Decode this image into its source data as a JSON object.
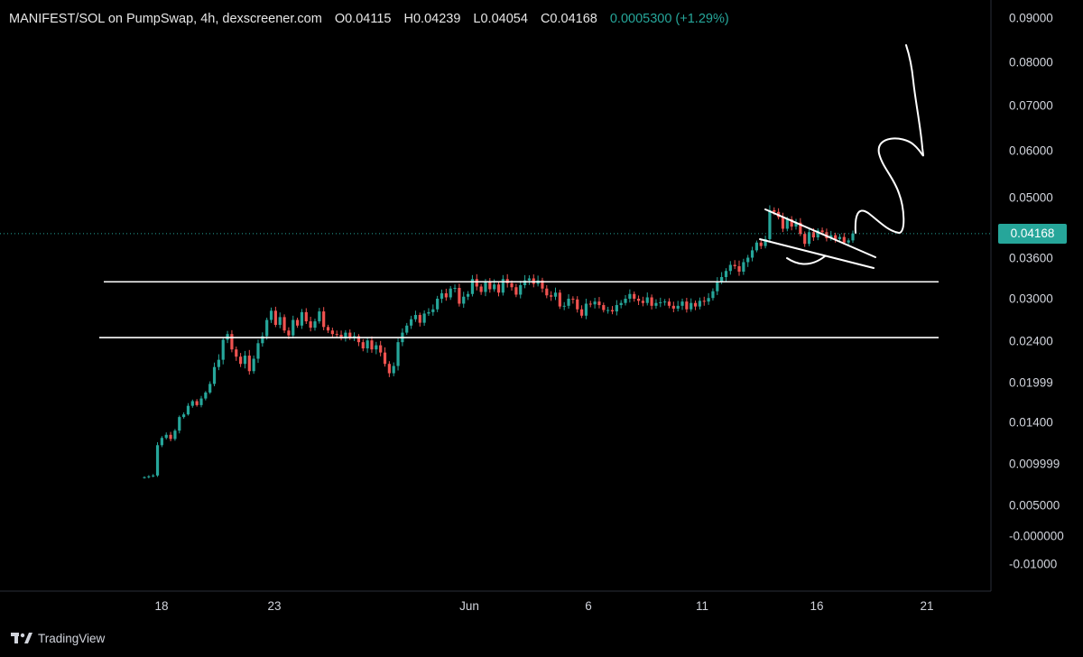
{
  "header": {
    "symbol": "MANIFEST/SOL on PumpSwap, 4h, dexscreener.com",
    "open": "O0.04115",
    "high": "H0.04239",
    "low": "L0.04054",
    "close": "C0.04168",
    "change": "0.0005300 (+1.29%)"
  },
  "last_price_label": "0.04168",
  "branding": {
    "name": "TradingView",
    "logo_icon": "tradingview-logo-icon"
  },
  "colors": {
    "up": "#26a69a",
    "down": "#ef5350",
    "background": "#000000",
    "annotation": "#ffffff"
  },
  "chart_data": {
    "type": "candlestick",
    "title": "MANIFEST/SOL on PumpSwap, 4h, dexscreener.com",
    "y_tick_labels": [
      "0.09000",
      "0.08000",
      "0.07000",
      "0.06000",
      "0.05000",
      "0.03600",
      "0.03000",
      "0.02400",
      "0.01999",
      "0.01400",
      "0.009999",
      "0.005000",
      "-0.000000",
      "-0.01000"
    ],
    "x_tick_labels": [
      "18",
      "23",
      "Jun",
      "6",
      "11",
      "16",
      "21"
    ],
    "last_price": 0.04168,
    "support_resistance_levels": [
      0.0325,
      0.0245
    ],
    "candles_close": [
      0.0084,
      0.0085,
      0.0086,
      0.0118,
      0.0125,
      0.0128,
      0.0124,
      0.0132,
      0.0148,
      0.0152,
      0.0165,
      0.0172,
      0.0166,
      0.0176,
      0.0185,
      0.0198,
      0.0215,
      0.0222,
      0.0242,
      0.025,
      0.0232,
      0.0225,
      0.0218,
      0.0226,
      0.0211,
      0.0223,
      0.0238,
      0.0247,
      0.027,
      0.0283,
      0.0263,
      0.0274,
      0.0255,
      0.0248,
      0.027,
      0.0262,
      0.0281,
      0.0268,
      0.0259,
      0.0268,
      0.0282,
      0.026,
      0.0255,
      0.025,
      0.0249,
      0.0244,
      0.0252,
      0.0245,
      0.0247,
      0.0239,
      0.0233,
      0.0241,
      0.0232,
      0.0236,
      0.0229,
      0.0218,
      0.0209,
      0.0216,
      0.0239,
      0.0252,
      0.0262,
      0.0271,
      0.0277,
      0.0266,
      0.0279,
      0.0281,
      0.0285,
      0.03,
      0.0308,
      0.0302,
      0.0315,
      0.0316,
      0.0293,
      0.0303,
      0.0307,
      0.0329,
      0.0318,
      0.031,
      0.0324,
      0.0314,
      0.0321,
      0.0309,
      0.0329,
      0.0323,
      0.0317,
      0.0306,
      0.032,
      0.0327,
      0.033,
      0.0322,
      0.0327,
      0.0315,
      0.0305,
      0.0303,
      0.0309,
      0.0289,
      0.029,
      0.03,
      0.0299,
      0.0285,
      0.0276,
      0.0293,
      0.0292,
      0.0296,
      0.0291,
      0.0284,
      0.0284,
      0.0282,
      0.0291,
      0.0294,
      0.03,
      0.0307,
      0.03,
      0.0297,
      0.0294,
      0.0302,
      0.029,
      0.0294,
      0.0295,
      0.0296,
      0.029,
      0.0286,
      0.029,
      0.0296,
      0.0285,
      0.0294,
      0.0289,
      0.0297,
      0.0296,
      0.0301,
      0.0311,
      0.0326,
      0.0332,
      0.0341,
      0.035,
      0.0348,
      0.034,
      0.0354,
      0.0361,
      0.0378,
      0.0396,
      0.0388,
      0.0404,
      0.0471,
      0.0467,
      0.0455,
      0.0428,
      0.045,
      0.0433,
      0.0442,
      0.0416,
      0.0393,
      0.042,
      0.0408,
      0.0424,
      0.042,
      0.0406,
      0.0413,
      0.0404,
      0.0409,
      0.0396,
      0.0401,
      0.0417
    ],
    "annotations": [
      "descending-wedge-trendlines",
      "rounded-bottom-arc",
      "projected-breakout-path"
    ],
    "grid": false
  }
}
